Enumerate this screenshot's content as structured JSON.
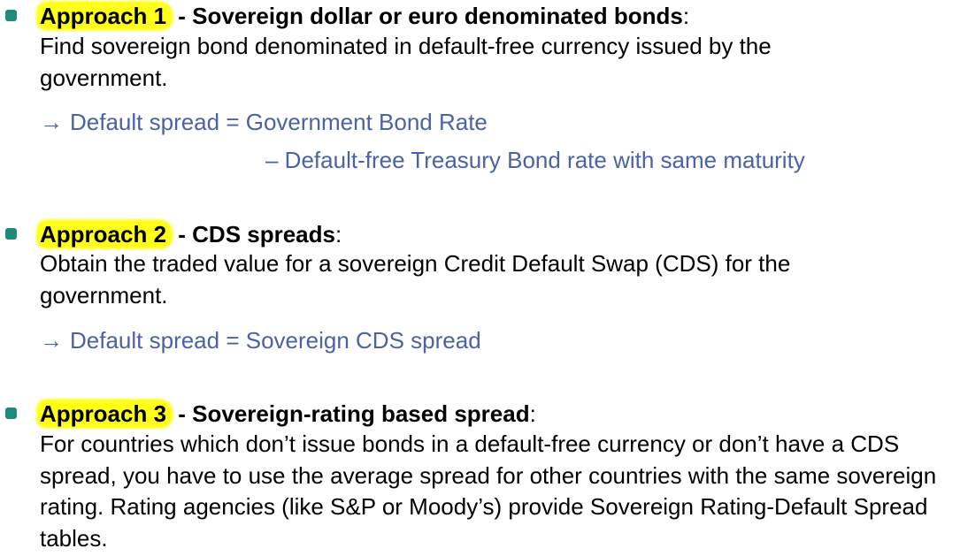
{
  "approaches": [
    {
      "label": "Approach 1",
      "separator": " - ",
      "title": "Sovereign dollar or euro denominated bonds",
      "colon": ":",
      "description": "Find sovereign bond denominated in default-free currency issued by the government.",
      "arrow": "→",
      "formula_line1": "Default spread = Government Bond Rate",
      "formula_line2": "– Default-free Treasury Bond rate with same maturity"
    },
    {
      "label": "Approach 2",
      "separator": " - ",
      "title": "CDS spreads",
      "colon": ":",
      "description": "Obtain the traded value for a sovereign Credit Default Swap (CDS) for the government.",
      "arrow": "→",
      "formula_line1": "Default spread = Sovereign CDS spread"
    },
    {
      "label": "Approach 3",
      "separator": " - ",
      "title": "Sovereign-rating based spread",
      "colon": ":",
      "description": "For countries which don’t issue bonds in a default-free currency or don’t have a CDS spread, you have to use the average spread for other countries with the same sovereign rating. Rating agencies (like S&P or Moody’s) provide Sovereign Rating-Default Spread tables."
    }
  ],
  "colors": {
    "bullet": "#1e8a78",
    "highlight": "#ffff1a",
    "formula_text": "#4a62a6"
  }
}
